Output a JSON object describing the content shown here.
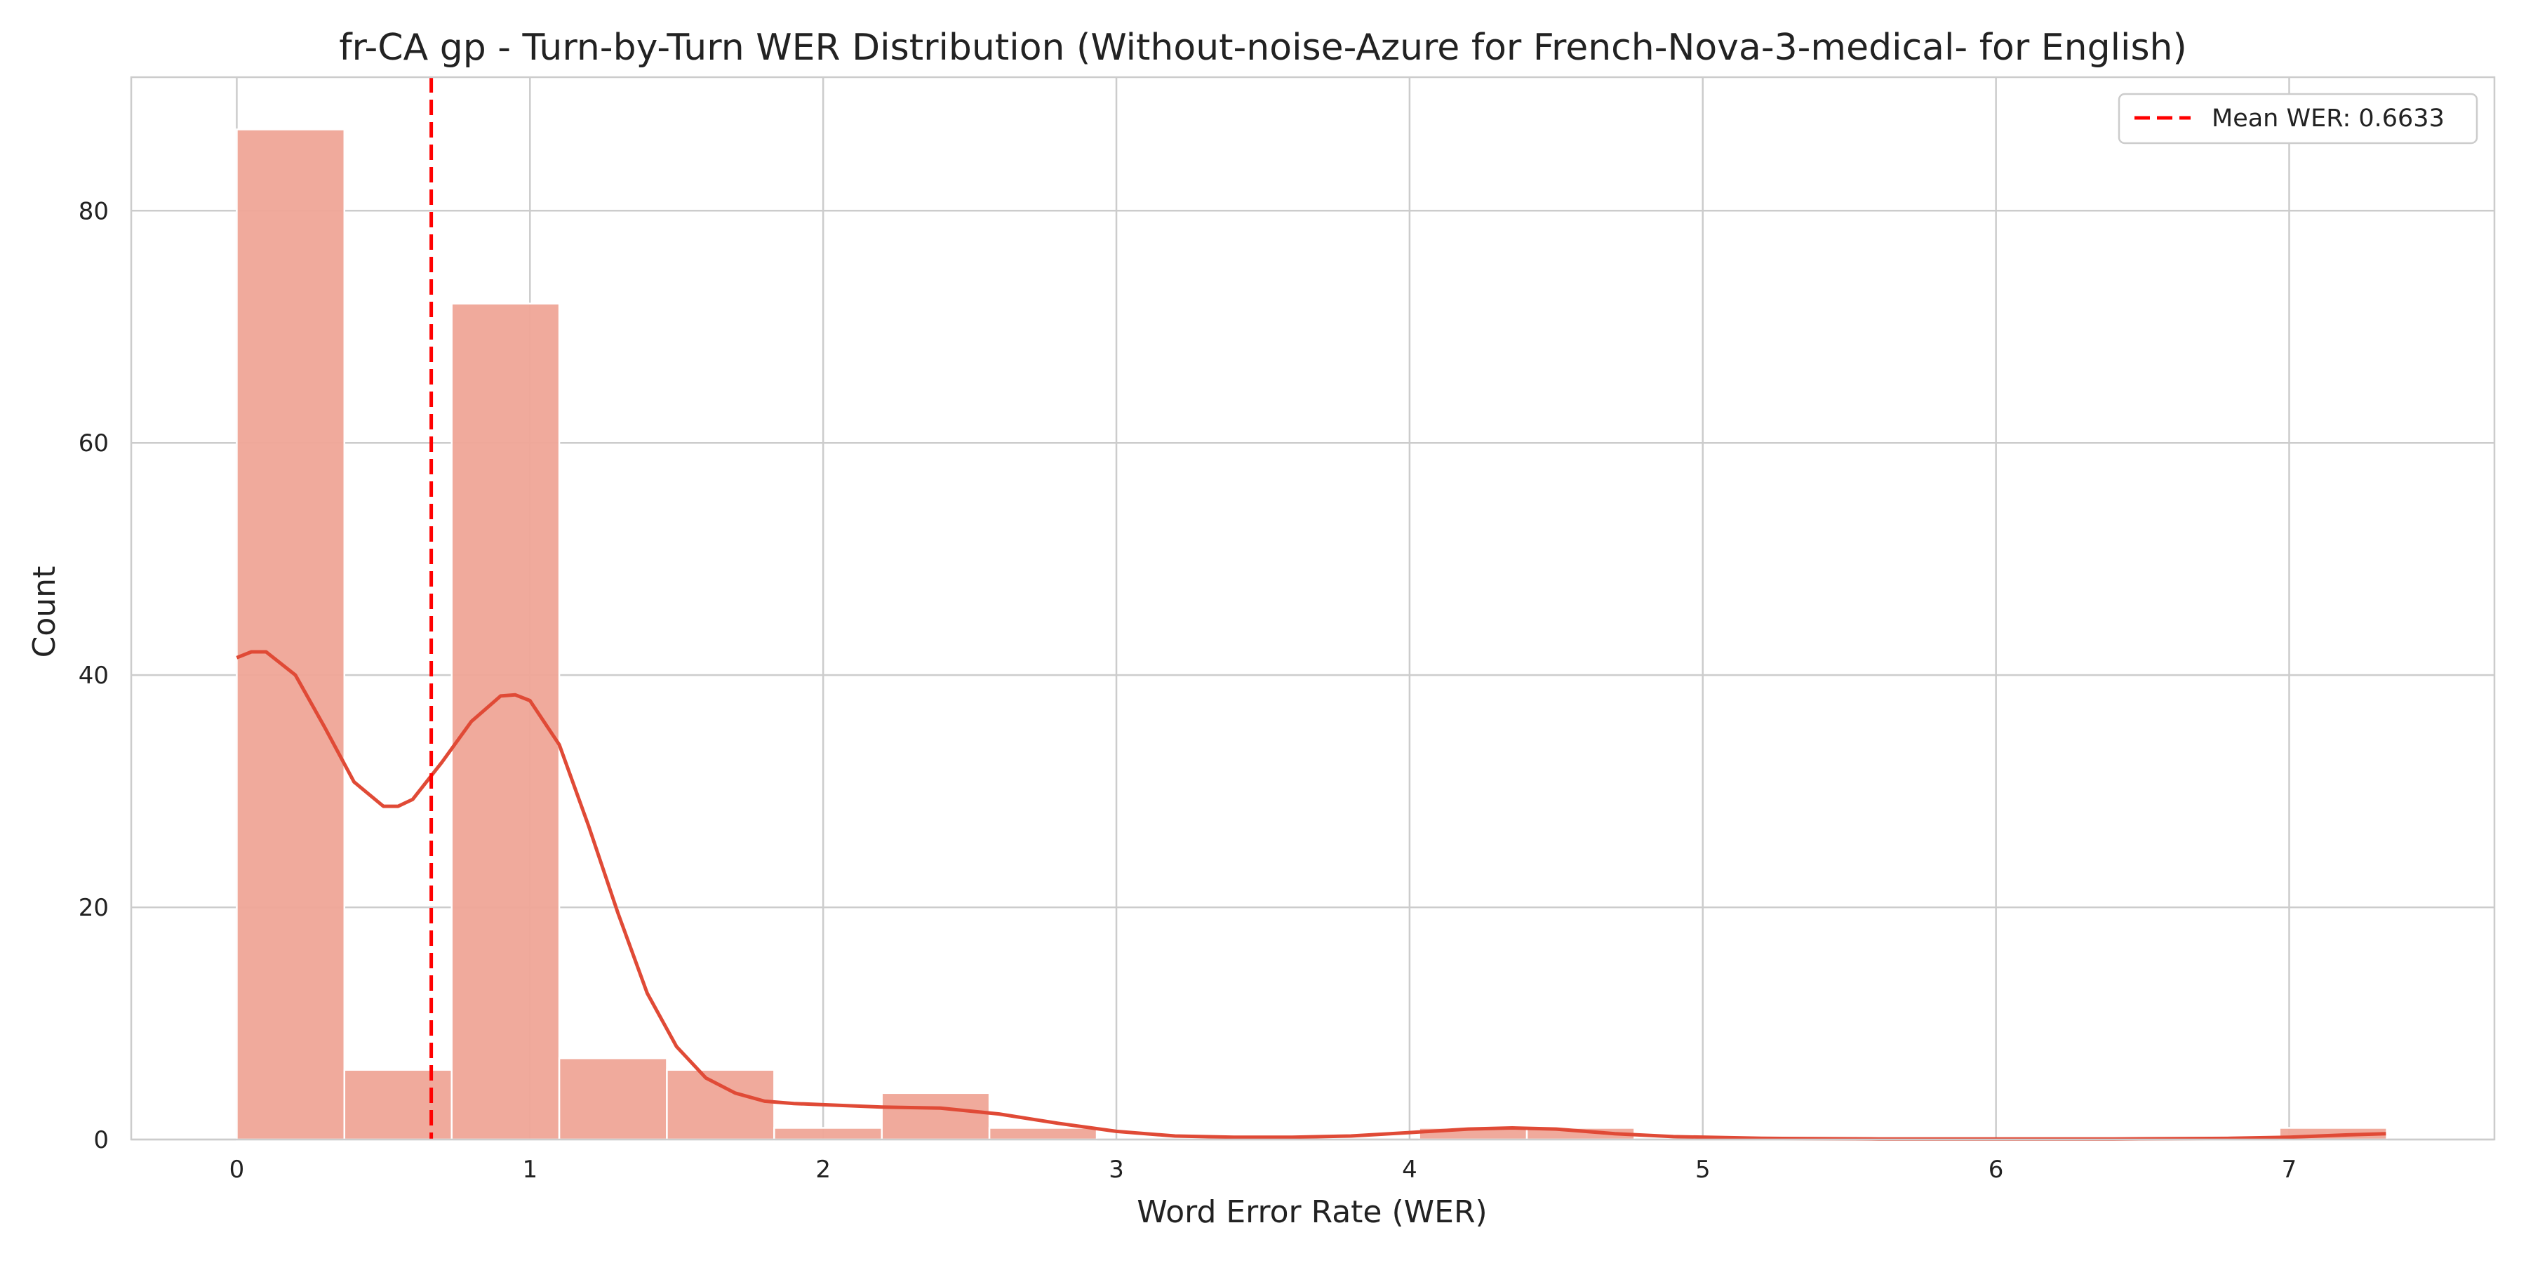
{
  "chart_data": {
    "type": "histogram",
    "title": "fr-CA gp - Turn-by-Turn WER Distribution (Without-noise-Azure for French-Nova-3-medical- for English)",
    "xlabel": "Word Error Rate (WER)",
    "ylabel": "Count",
    "xlim": [
      -0.36,
      7.7
    ],
    "ylim": [
      0,
      91.5
    ],
    "xticks": [
      0,
      1,
      2,
      3,
      4,
      5,
      6,
      7
    ],
    "yticks": [
      0,
      20,
      40,
      60,
      80
    ],
    "grid": true,
    "bin_width": 0.367,
    "bins": [
      {
        "x0": 0.0,
        "x1": 0.367,
        "count": 87
      },
      {
        "x0": 0.367,
        "x1": 0.733,
        "count": 6
      },
      {
        "x0": 0.733,
        "x1": 1.1,
        "count": 72
      },
      {
        "x0": 1.1,
        "x1": 1.467,
        "count": 7
      },
      {
        "x0": 1.467,
        "x1": 1.833,
        "count": 6
      },
      {
        "x0": 1.833,
        "x1": 2.2,
        "count": 1
      },
      {
        "x0": 2.2,
        "x1": 2.567,
        "count": 4
      },
      {
        "x0": 2.567,
        "x1": 2.933,
        "count": 1
      },
      {
        "x0": 2.933,
        "x1": 3.3,
        "count": 0
      },
      {
        "x0": 3.3,
        "x1": 3.667,
        "count": 0
      },
      {
        "x0": 3.667,
        "x1": 4.033,
        "count": 0
      },
      {
        "x0": 4.033,
        "x1": 4.4,
        "count": 1
      },
      {
        "x0": 4.4,
        "x1": 4.767,
        "count": 1
      },
      {
        "x0": 4.767,
        "x1": 5.133,
        "count": 0
      },
      {
        "x0": 5.133,
        "x1": 5.5,
        "count": 0
      },
      {
        "x0": 5.5,
        "x1": 5.867,
        "count": 0
      },
      {
        "x0": 5.867,
        "x1": 6.233,
        "count": 0
      },
      {
        "x0": 6.233,
        "x1": 6.6,
        "count": 0
      },
      {
        "x0": 6.6,
        "x1": 6.967,
        "count": 0
      },
      {
        "x0": 6.967,
        "x1": 7.333,
        "count": 1
      }
    ],
    "kde": {
      "x": [
        0.0,
        0.05,
        0.1,
        0.2,
        0.3,
        0.4,
        0.5,
        0.55,
        0.6,
        0.7,
        0.8,
        0.9,
        0.95,
        1.0,
        1.1,
        1.2,
        1.3,
        1.4,
        1.5,
        1.6,
        1.7,
        1.8,
        1.9,
        2.0,
        2.2,
        2.4,
        2.6,
        2.8,
        3.0,
        3.2,
        3.4,
        3.6,
        3.8,
        4.0,
        4.2,
        4.35,
        4.5,
        4.7,
        4.9,
        5.2,
        5.6,
        6.0,
        6.4,
        6.8,
        7.0,
        7.2,
        7.33
      ],
      "y": [
        41.5,
        42.0,
        42.0,
        40.0,
        35.5,
        30.8,
        28.7,
        28.7,
        29.3,
        32.5,
        36.0,
        38.2,
        38.3,
        37.8,
        34.0,
        27.0,
        19.5,
        12.6,
        8.0,
        5.3,
        4.0,
        3.3,
        3.1,
        3.0,
        2.8,
        2.7,
        2.2,
        1.4,
        0.7,
        0.3,
        0.2,
        0.2,
        0.3,
        0.6,
        0.9,
        1.0,
        0.9,
        0.5,
        0.25,
        0.1,
        0.05,
        0.05,
        0.05,
        0.1,
        0.2,
        0.4,
        0.5
      ]
    },
    "mean_line": {
      "x": 0.6633,
      "label": "Mean WER: 0.6633"
    },
    "legend": {
      "position": "top-right"
    },
    "colors": {
      "bar_fill": "#EFA597",
      "bar_edge": "#ffffff",
      "kde_line": "#E04A36",
      "mean_line": "#FF0000",
      "grid": "#CCCCCC",
      "axes_edge": "#CCCCCC",
      "text": "#222222",
      "background": "#ffffff"
    }
  }
}
